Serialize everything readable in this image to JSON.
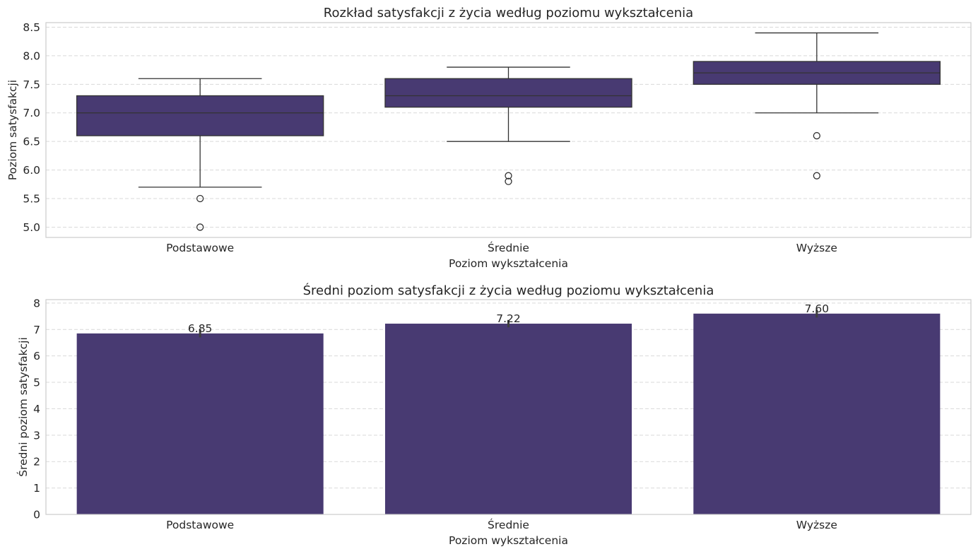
{
  "colors": {
    "bar": "#483a72",
    "line": "#333333",
    "grid": "#d9d9d9",
    "spine": "#cccccc",
    "text": "#262626"
  },
  "chart_data": [
    {
      "type": "box",
      "title": "Rozkład satysfakcji z życia według poziomu wykształcenia",
      "xlabel": "Poziom wykształcenia",
      "ylabel": "Poziom satysfakcji",
      "categories": [
        "Podstawowe",
        "Średnie",
        "Wyższe"
      ],
      "ylim": [
        4.82,
        8.58
      ],
      "yticks": [
        "5.0",
        "5.5",
        "6.0",
        "6.5",
        "7.0",
        "7.5",
        "8.0",
        "8.5"
      ],
      "grid": "y-dashed",
      "boxes": [
        {
          "whisker_low": 5.7,
          "q1": 6.6,
          "median": 7.0,
          "q3": 7.3,
          "whisker_high": 7.6,
          "outliers": [
            5.5,
            5.0
          ]
        },
        {
          "whisker_low": 6.5,
          "q1": 7.1,
          "median": 7.3,
          "q3": 7.6,
          "whisker_high": 7.8,
          "outliers": [
            5.9,
            5.8
          ]
        },
        {
          "whisker_low": 7.0,
          "q1": 7.5,
          "median": 7.7,
          "q3": 7.9,
          "whisker_high": 8.4,
          "outliers": [
            6.6,
            5.9
          ]
        }
      ]
    },
    {
      "type": "bar",
      "title": "Średni poziom satysfakcji z życia według poziomu wykształcenia",
      "xlabel": "Poziom wykształcenia",
      "ylabel": "Średni poziom satysfakcji",
      "categories": [
        "Podstawowe",
        "Średnie",
        "Wyższe"
      ],
      "values": [
        6.85,
        7.22,
        7.6
      ],
      "value_labels": [
        "6.85",
        "7.22",
        "7.60"
      ],
      "error_bars": [
        [
          6.7,
          7.0
        ],
        [
          7.08,
          7.36
        ],
        [
          7.45,
          7.75
        ]
      ],
      "ylim": [
        0,
        8.13
      ],
      "yticks": [
        "0",
        "1",
        "2",
        "3",
        "4",
        "5",
        "6",
        "7",
        "8"
      ],
      "grid": "y-dashed"
    }
  ]
}
